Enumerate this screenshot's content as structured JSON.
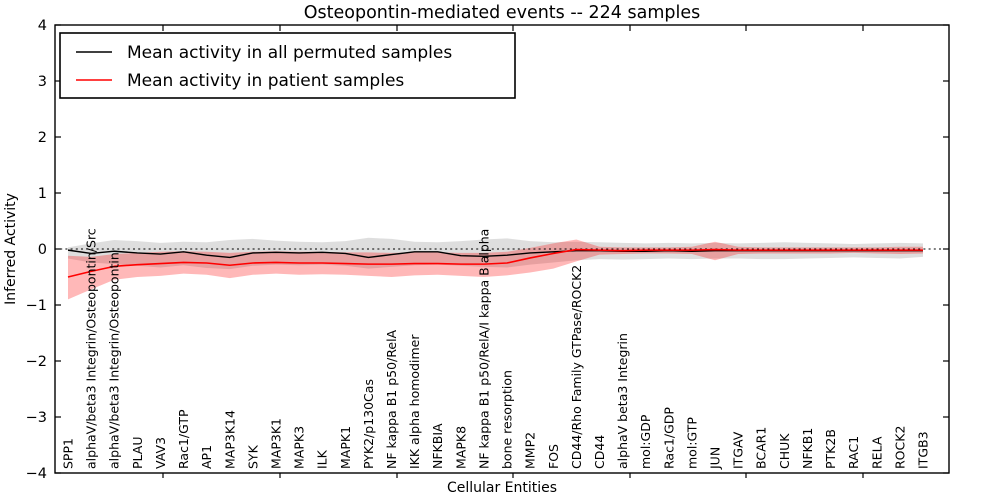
{
  "title": "Osteopontin-mediated events -- 224 samples",
  "legend": {
    "items": [
      {
        "label": "Mean activity in all permuted samples",
        "color": "#000000"
      },
      {
        "label": "Mean activity in patient samples",
        "color": "#ff0000"
      }
    ],
    "position": "upper left"
  },
  "chart_data": {
    "type": "line",
    "title": "Osteopontin-mediated events -- 224 samples",
    "xlabel": "Cellular Entities",
    "ylabel": "Inferred Activity",
    "ylim": [
      -4,
      4
    ],
    "grid": false,
    "zero_line_style": "dotted",
    "legend_position": "upper left",
    "ytick_values": [
      4,
      3,
      2,
      1,
      0,
      -1,
      -2,
      -3,
      -4
    ],
    "ytick_labels": [
      "4",
      "3",
      "2",
      "1",
      "0",
      "−1",
      "−2",
      "−3",
      "−4"
    ],
    "categories": [
      "SPP1",
      "alphaV/beta3 Integrin/Osteopontin/Src",
      "alphaV/beta3 Integrin/Osteopontin",
      "PLAU",
      "VAV3",
      "Rac1/GTP",
      "AP1",
      "MAP3K14",
      "SYK",
      "MAP3K1",
      "MAPK3",
      "ILK",
      "MAPK1",
      "PYK2/p130Cas",
      "NF kappa B1 p50/RelA",
      "IKK alpha homodimer",
      "NFKBIA",
      "MAPK8",
      "NF kappa B1 p50/RelA/I kappa B alpha",
      "bone resorption",
      "MMP2",
      "FOS",
      "CD44/Rho Family GTPase/ROCK2",
      "CD44",
      "alphaV beta3 Integrin",
      "mol:GDP",
      "Rac1/GDP",
      "mol:GTP",
      "JUN",
      "ITGAV",
      "BCAR1",
      "CHUK",
      "NFKB1",
      "PTK2B",
      "RAC1",
      "RELA",
      "ROCK2",
      "ITGB3"
    ],
    "series": [
      {
        "name": "Mean activity in all permuted samples",
        "color": "#000000",
        "line_width": 1.4,
        "values": [
          -0.02,
          -0.08,
          -0.04,
          -0.07,
          -0.09,
          -0.05,
          -0.11,
          -0.15,
          -0.07,
          -0.06,
          -0.07,
          -0.06,
          -0.08,
          -0.15,
          -0.1,
          -0.05,
          -0.05,
          -0.12,
          -0.13,
          -0.11,
          -0.07,
          -0.05,
          -0.03,
          -0.03,
          -0.04,
          -0.04,
          -0.03,
          -0.04,
          -0.03,
          -0.03,
          -0.03,
          -0.03,
          -0.03,
          -0.03,
          -0.03,
          -0.03,
          -0.03,
          -0.03
        ],
        "band": {
          "fill": "rgba(0,0,0,0.13)",
          "upper": [
            0.03,
            0.1,
            0.16,
            0.14,
            0.11,
            0.13,
            0.12,
            0.16,
            0.18,
            0.15,
            0.13,
            0.12,
            0.14,
            0.2,
            0.18,
            0.13,
            0.12,
            0.14,
            0.17,
            0.19,
            0.14,
            0.12,
            0.13,
            0.12,
            0.11,
            0.1,
            0.11,
            0.1,
            0.11,
            0.1,
            0.11,
            0.12,
            0.11,
            0.1,
            0.09,
            0.1,
            0.11,
            0.1
          ],
          "lower": [
            -0.17,
            -0.24,
            -0.27,
            -0.3,
            -0.33,
            -0.29,
            -0.34,
            -0.36,
            -0.3,
            -0.28,
            -0.29,
            -0.28,
            -0.3,
            -0.35,
            -0.32,
            -0.29,
            -0.28,
            -0.3,
            -0.32,
            -0.33,
            -0.28,
            -0.24,
            -0.2,
            -0.18,
            -0.19,
            -0.18,
            -0.17,
            -0.18,
            -0.17,
            -0.17,
            -0.18,
            -0.18,
            -0.17,
            -0.16,
            -0.15,
            -0.16,
            -0.17,
            -0.14
          ]
        }
      },
      {
        "name": "Mean activity in patient samples",
        "color": "#ff0000",
        "line_width": 1.6,
        "values": [
          -0.5,
          -0.4,
          -0.31,
          -0.28,
          -0.26,
          -0.24,
          -0.25,
          -0.29,
          -0.25,
          -0.24,
          -0.25,
          -0.25,
          -0.26,
          -0.27,
          -0.27,
          -0.26,
          -0.26,
          -0.27,
          -0.27,
          -0.25,
          -0.16,
          -0.08,
          -0.01,
          -0.02,
          -0.03,
          -0.02,
          -0.02,
          -0.02,
          -0.01,
          -0.02,
          -0.02,
          -0.02,
          -0.02,
          -0.02,
          -0.02,
          -0.02,
          -0.02,
          -0.02
        ],
        "band": {
          "fill": "rgba(255,0,0,0.28)",
          "upper": [
            -0.12,
            -0.14,
            -0.09,
            -0.07,
            -0.05,
            -0.04,
            -0.05,
            -0.07,
            -0.05,
            -0.04,
            -0.05,
            -0.05,
            -0.06,
            -0.06,
            -0.07,
            -0.06,
            -0.06,
            -0.07,
            -0.07,
            -0.05,
            0.02,
            0.1,
            0.17,
            0.04,
            0.03,
            0.03,
            0.03,
            0.04,
            0.13,
            0.04,
            0.03,
            0.03,
            0.03,
            0.03,
            0.03,
            0.03,
            0.04,
            0.04
          ],
          "lower": [
            -0.9,
            -0.72,
            -0.55,
            -0.5,
            -0.48,
            -0.44,
            -0.46,
            -0.52,
            -0.46,
            -0.44,
            -0.46,
            -0.45,
            -0.46,
            -0.48,
            -0.5,
            -0.47,
            -0.46,
            -0.48,
            -0.5,
            -0.47,
            -0.42,
            -0.35,
            -0.22,
            -0.1,
            -0.09,
            -0.08,
            -0.08,
            -0.09,
            -0.2,
            -0.09,
            -0.08,
            -0.08,
            -0.08,
            -0.08,
            -0.07,
            -0.08,
            -0.09,
            -0.08
          ]
        }
      }
    ]
  }
}
